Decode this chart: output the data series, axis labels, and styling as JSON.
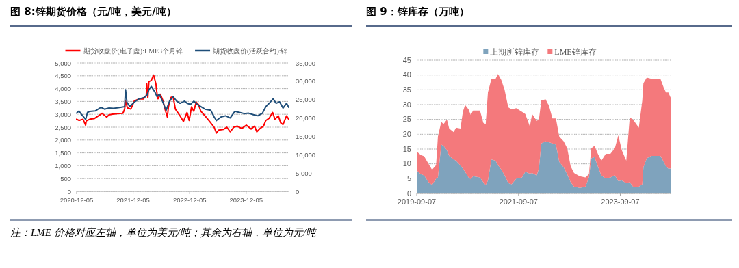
{
  "chart_data": [
    {
      "type": "line",
      "title": "图 8:锌期货价格（元/吨，美元/吨）",
      "legend": "top",
      "grid": "y",
      "line_style": "solid",
      "xlim": [
        "2020-12-05",
        "2024-09-05"
      ],
      "xticks": [
        {
          "value": "2020-12-05",
          "label": "2020-12-05"
        },
        {
          "value": "2021-12-05",
          "label": "2021-12-05"
        },
        {
          "value": "2022-12-05",
          "label": "2022-12-05"
        },
        {
          "value": "2023-12-05",
          "label": "2023-12-05"
        }
      ],
      "ylim": [
        0,
        5000
      ],
      "yticks": [
        0,
        500,
        {
          "value": 1000,
          "label": "1,000"
        },
        {
          "value": 1500,
          "label": "1,500"
        },
        {
          "value": 2000,
          "label": "2,000"
        },
        {
          "value": 2500,
          "label": "2,500"
        },
        {
          "value": 3000,
          "label": "3,000"
        },
        {
          "value": 3500,
          "label": "3,500"
        },
        {
          "value": 4000,
          "label": "4,000"
        },
        {
          "value": 4500,
          "label": "4,500"
        },
        {
          "value": 5000,
          "label": "5,000"
        }
      ],
      "y2lim": [
        0,
        35000
      ],
      "y2ticks": [
        0,
        {
          "value": 5000,
          "label": "5,000"
        },
        {
          "value": 10000,
          "label": "10,000"
        },
        {
          "value": 15000,
          "label": "15,000"
        },
        {
          "value": 20000,
          "label": "20,000"
        },
        {
          "value": 25000,
          "label": "25,000"
        },
        {
          "value": 30000,
          "label": "30,000"
        },
        {
          "value": 35000,
          "label": "35,000"
        }
      ],
      "annotations": [
        "注：LME 价格对应左轴，单位为美元/吨；其余为右轴，单位为元/吨"
      ],
      "series": [
        {
          "name": "期货收盘价(电子盘):LME3个月锌",
          "color": "#ff0000",
          "x": [
            "2020-12-05",
            "2020-12-20",
            "2021-01-15",
            "2021-02-01",
            "2021-02-05",
            "2021-02-28",
            "2021-03-28",
            "2021-05-05",
            "2021-05-18",
            "2021-06-17",
            "2021-07-02",
            "2021-08-01",
            "2021-09-08",
            "2021-09-30",
            "2021-10-11",
            "2021-10-17",
            "2021-10-29",
            "2021-11-20",
            "2021-12-12",
            "2022-01-12",
            "2022-02-10",
            "2022-02-28",
            "2022-03-03",
            "2022-03-10",
            "2022-03-17",
            "2022-04-01",
            "2022-04-16",
            "2022-05-01",
            "2022-05-08",
            "2022-05-15",
            "2022-05-30",
            "2022-06-15",
            "2022-06-29",
            "2022-07-14",
            "2022-07-21",
            "2022-08-05",
            "2022-08-20",
            "2022-09-04",
            "2022-09-19",
            "2022-10-04",
            "2022-10-26",
            "2022-11-18",
            "2022-12-02",
            "2022-12-17",
            "2023-01-01",
            "2023-01-16",
            "2023-01-31",
            "2023-02-15",
            "2023-03-14",
            "2023-04-13",
            "2023-05-12",
            "2023-05-27",
            "2023-06-11",
            "2023-07-11",
            "2023-08-02",
            "2023-08-24",
            "2023-09-16",
            "2023-10-08",
            "2023-11-07",
            "2023-12-06",
            "2024-01-06",
            "2024-01-28",
            "2024-02-12",
            "2024-03-04",
            "2024-03-26",
            "2024-04-10",
            "2024-05-02",
            "2024-05-24",
            "2024-06-08",
            "2024-06-30",
            "2024-07-15",
            "2024-07-30",
            "2024-08-22",
            "2024-09-05"
          ],
          "values": [
            2810,
            2760,
            2810,
            2580,
            2740,
            2810,
            2830,
            2980,
            3040,
            2890,
            2980,
            3010,
            3030,
            3040,
            3200,
            3510,
            3250,
            3200,
            3510,
            3600,
            3600,
            3740,
            4180,
            3650,
            4270,
            4310,
            4530,
            4180,
            3820,
            3600,
            3780,
            3540,
            3200,
            2890,
            3290,
            3650,
            3690,
            3200,
            3070,
            2940,
            2720,
            3070,
            2760,
            3290,
            3120,
            3470,
            3380,
            3120,
            2940,
            2720,
            2500,
            2270,
            2390,
            2410,
            2500,
            2320,
            2500,
            2540,
            2450,
            2580,
            2430,
            2540,
            2320,
            2450,
            2540,
            2760,
            2850,
            3070,
            2810,
            2940,
            2670,
            2600,
            2940,
            2810
          ]
        },
        {
          "name": "期货收盘价(活跃合约):锌",
          "color": "#1f4e79",
          "axis": "y2",
          "x": [
            "2020-12-05",
            "2020-12-20",
            "2021-01-07",
            "2021-02-01",
            "2021-02-13",
            "2021-02-28",
            "2021-04-04",
            "2021-05-11",
            "2021-06-03",
            "2021-07-02",
            "2021-08-01",
            "2021-09-15",
            "2021-10-11",
            "2021-10-17",
            "2021-10-26",
            "2021-11-13",
            "2021-12-12",
            "2022-01-12",
            "2022-02-10",
            "2022-03-03",
            "2022-03-17",
            "2022-04-01",
            "2022-04-24",
            "2022-05-08",
            "2022-05-23",
            "2022-06-15",
            "2022-07-06",
            "2022-07-28",
            "2022-08-20",
            "2022-09-12",
            "2022-10-04",
            "2022-11-03",
            "2022-11-18",
            "2022-12-10",
            "2023-01-01",
            "2023-01-23",
            "2023-02-15",
            "2023-03-14",
            "2023-04-20",
            "2023-05-12",
            "2023-05-27",
            "2023-06-26",
            "2023-07-26",
            "2023-08-24",
            "2023-09-23",
            "2023-10-23",
            "2023-11-22",
            "2023-12-21",
            "2024-01-20",
            "2024-02-19",
            "2024-03-19",
            "2024-04-10",
            "2024-05-02",
            "2024-05-27",
            "2024-06-16",
            "2024-07-08",
            "2024-07-30",
            "2024-08-22",
            "2024-09-05"
          ],
          "values": [
            21300,
            21900,
            20900,
            19600,
            21500,
            21800,
            21900,
            22900,
            22400,
            22700,
            22600,
            22900,
            23100,
            27700,
            24300,
            23100,
            24300,
            25200,
            25500,
            26100,
            27700,
            28600,
            27100,
            25800,
            26500,
            24300,
            22100,
            24600,
            25800,
            24600,
            24000,
            24600,
            24000,
            23700,
            24600,
            23700,
            23100,
            22400,
            22100,
            20300,
            19300,
            20300,
            20600,
            20000,
            21800,
            21500,
            21200,
            21300,
            20900,
            20600,
            21300,
            23100,
            24000,
            25200,
            24000,
            24400,
            22700,
            24000,
            22900
          ]
        }
      ]
    },
    {
      "type": "area",
      "stacked": true,
      "title": "图 9：锌库存（万吨）",
      "legend": "top",
      "grid": "y",
      "xlim": [
        "2019-09-07",
        "2024-09-07"
      ],
      "xticks": [
        {
          "value": "2019-09-07",
          "label": "2019-09-07"
        },
        {
          "value": "2021-09-07",
          "label": "2021-09-07"
        },
        {
          "value": "2023-09-07",
          "label": "2023-09-07"
        }
      ],
      "ylim": [
        0,
        45
      ],
      "yticks": [
        0,
        5,
        10,
        15,
        20,
        25,
        30,
        35,
        40,
        45
      ],
      "x": [
        "2019-09-07",
        "2019-10-06",
        "2019-10-30",
        "2019-12-01",
        "2019-12-26",
        "2020-01-24",
        "2020-02-06",
        "2020-03-01",
        "2020-03-17",
        "2020-04-11",
        "2020-04-27",
        "2020-05-29",
        "2020-06-15",
        "2020-07-17",
        "2020-08-03",
        "2020-08-19",
        "2020-09-13",
        "2020-09-29",
        "2020-10-15",
        "2020-12-04",
        "2020-12-28",
        "2021-01-14",
        "2021-01-30",
        "2021-02-24",
        "2021-03-26",
        "2021-04-12",
        "2021-05-06",
        "2021-05-30",
        "2021-06-25",
        "2021-07-19",
        "2021-08-21",
        "2021-10-01",
        "2021-10-25",
        "2021-11-27",
        "2021-12-13",
        "2022-01-15",
        "2022-01-31",
        "2022-02-17",
        "2022-03-20",
        "2022-04-14",
        "2022-05-08",
        "2022-06-02",
        "2022-06-26",
        "2022-07-28",
        "2022-08-22",
        "2022-09-16",
        "2022-10-10",
        "2022-11-20",
        "2022-12-31",
        "2023-01-25",
        "2023-02-11",
        "2023-03-06",
        "2023-03-30",
        "2023-04-24",
        "2023-05-26",
        "2023-06-28",
        "2023-07-30",
        "2023-08-24",
        "2023-09-18",
        "2023-10-20",
        "2023-11-14",
        "2023-12-08",
        "2024-01-18",
        "2024-02-12",
        "2024-02-20",
        "2024-03-15",
        "2024-04-17",
        "2024-05-19",
        "2024-06-21",
        "2024-07-15",
        "2024-07-31",
        "2024-08-17",
        "2024-09-04"
      ],
      "series": [
        {
          "name": "上期所锌库存",
          "color": "#7fa3bd",
          "values": [
            7.8,
            6.5,
            6.1,
            3.8,
            2.9,
            5.0,
            5.4,
            16.5,
            16.1,
            14.6,
            12.7,
            11.5,
            11.1,
            9.4,
            8.4,
            7.3,
            5.4,
            4.8,
            5.8,
            5.4,
            3.8,
            2.9,
            4.4,
            11.5,
            11.1,
            9.6,
            8.1,
            6.1,
            3.5,
            3.1,
            5.0,
            5.4,
            7.3,
            6.7,
            6.9,
            6.1,
            8.4,
            16.9,
            17.6,
            17.3,
            16.9,
            16.5,
            10.7,
            8.8,
            6.5,
            3.8,
            2.3,
            1.9,
            2.3,
            5.4,
            11.9,
            12.3,
            9.2,
            6.1,
            5.0,
            5.4,
            6.1,
            4.2,
            4.4,
            3.5,
            3.8,
            2.3,
            2.3,
            3.1,
            8.8,
            11.9,
            12.7,
            12.7,
            12.7,
            10.7,
            9.2,
            8.4,
            8.4
          ]
        },
        {
          "name": "LME锌库存",
          "color": "#f4797c",
          "values": [
            6.4,
            6.5,
            6.5,
            6.2,
            5.1,
            4.6,
            13.8,
            7.7,
            7.3,
            10.3,
            9.2,
            9.2,
            11.1,
            12.5,
            19.2,
            22.6,
            23.0,
            21.7,
            22.2,
            22.6,
            20.0,
            20.5,
            29.7,
            27.2,
            27.6,
            30.7,
            30.2,
            28.8,
            25.6,
            25.3,
            23.8,
            22.2,
            19.5,
            15.9,
            19.9,
            18.4,
            16.5,
            14.5,
            14.2,
            12.2,
            8.4,
            8.8,
            8.5,
            8.8,
            8.8,
            5.4,
            4.6,
            3.9,
            3.1,
            1.1,
            3.4,
            3.8,
            4.2,
            5.0,
            8.4,
            8.0,
            9.2,
            15.4,
            10.2,
            7.6,
            21.9,
            22.6,
            19.9,
            28.3,
            28.4,
            27.2,
            26.0,
            26.0,
            26.0,
            25.0,
            24.9,
            25.7,
            23.8
          ]
        }
      ]
    }
  ]
}
